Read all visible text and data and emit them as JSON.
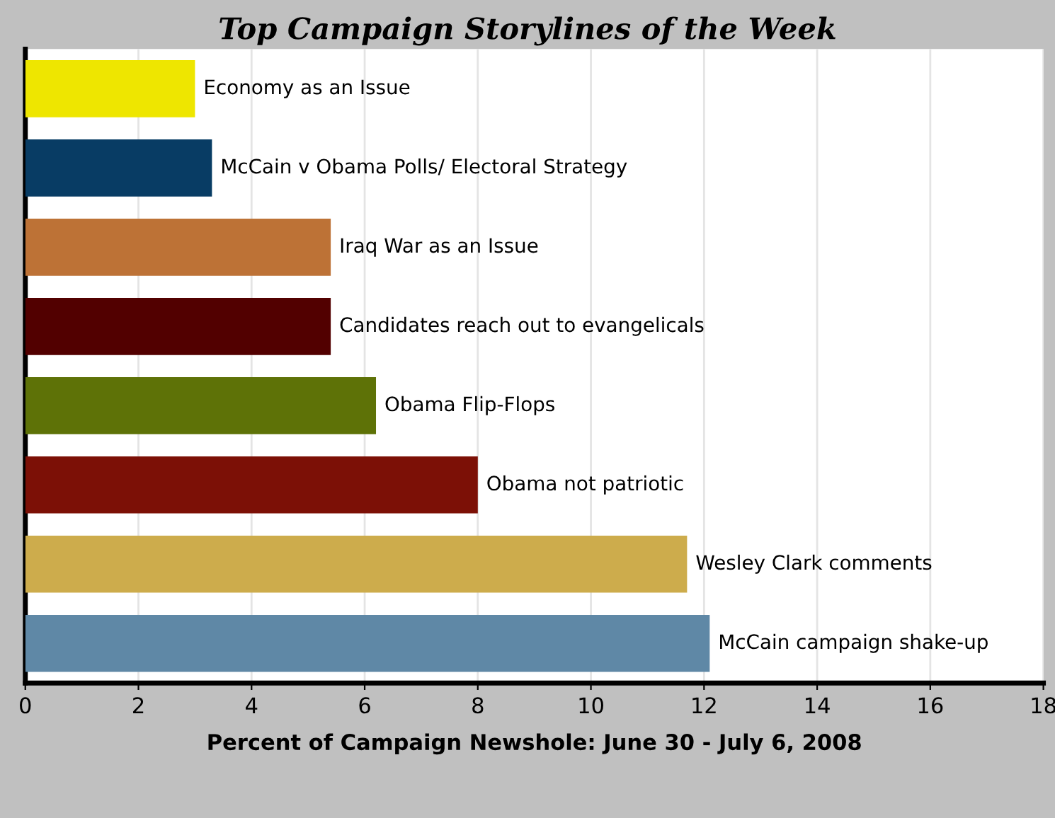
{
  "chart_data": {
    "type": "bar",
    "orientation": "horizontal",
    "title": "Top Campaign Storylines of the Week",
    "xlabel": "Percent of Campaign Newshole: June 30 - July 6, 2008",
    "categories": [
      "Economy as an Issue",
      "McCain v Obama Polls/ Electoral Strategy",
      "Iraq War as an Issue",
      "Candidates reach out to evangelicals",
      "Obama Flip-Flops",
      "Obama not patriotic",
      "Wesley Clark comments",
      "McCain campaign shake-up"
    ],
    "values": [
      3.0,
      3.3,
      5.4,
      5.4,
      6.2,
      8.0,
      11.7,
      12.1
    ],
    "colors": [
      "#eee600",
      "#083c64",
      "#bd7236",
      "#520000",
      "#5e7207",
      "#7c1006",
      "#cdac4c",
      "#5f88a6"
    ],
    "xlim": [
      0,
      18
    ],
    "xticks": [
      0,
      2,
      4,
      6,
      8,
      10,
      12,
      14,
      16,
      18
    ],
    "grid": "x",
    "legend": false
  }
}
